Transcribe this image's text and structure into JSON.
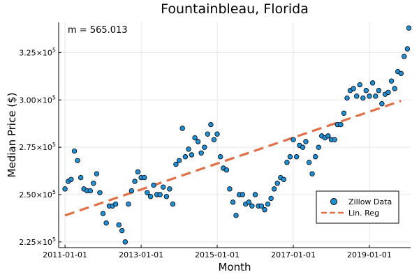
{
  "chart_data": {
    "type": "scatter",
    "title": "Fountainbleau, Florida",
    "xlabel": "Month",
    "ylabel": "Median Price ($)",
    "annotation": "m = 565.013",
    "legend_position": "bottom-right",
    "grid": true,
    "xlim": [
      "2010-11-01",
      "2020-02-01"
    ],
    "ylim": [
      222000,
      341000
    ],
    "x_ticks": [
      "2011-01-01",
      "2013-01-01",
      "2015-01-01",
      "2017-01-01",
      "2019-01-01"
    ],
    "y_ticks": [
      {
        "value": 225000,
        "mantissa": "2.25",
        "exp": "5"
      },
      {
        "value": 250000,
        "mantissa": "2.50",
        "exp": "5"
      },
      {
        "value": 275000,
        "mantissa": "2.75",
        "exp": "5"
      },
      {
        "value": 300000,
        "mantissa": "3.00",
        "exp": "5"
      },
      {
        "value": 325000,
        "mantissa": "3.25",
        "exp": "5"
      }
    ],
    "y_tick_base": "×10",
    "series": [
      {
        "name": "Zillow Data",
        "type": "scatter",
        "color": "#1f8fd6",
        "points": [
          [
            "2011-01-01",
            253000
          ],
          [
            "2011-02-01",
            257000
          ],
          [
            "2011-03-01",
            258000
          ],
          [
            "2011-04-01",
            273000
          ],
          [
            "2011-05-01",
            268000
          ],
          [
            "2011-06-01",
            259000
          ],
          [
            "2011-07-01",
            253000
          ],
          [
            "2011-08-01",
            252000
          ],
          [
            "2011-09-01",
            252000
          ],
          [
            "2011-10-01",
            256000
          ],
          [
            "2011-11-01",
            261000
          ],
          [
            "2011-12-01",
            251000
          ],
          [
            "2012-01-01",
            240000
          ],
          [
            "2012-02-01",
            235000
          ],
          [
            "2012-03-01",
            244000
          ],
          [
            "2012-04-01",
            244000
          ],
          [
            "2012-05-01",
            245000
          ],
          [
            "2012-06-01",
            234000
          ],
          [
            "2012-07-01",
            231000
          ],
          [
            "2012-08-01",
            225000
          ],
          [
            "2012-09-01",
            245000
          ],
          [
            "2012-10-01",
            252000
          ],
          [
            "2012-11-01",
            257000
          ],
          [
            "2012-12-01",
            262000
          ],
          [
            "2013-01-01",
            259000
          ],
          [
            "2013-02-01",
            259000
          ],
          [
            "2013-03-01",
            251000
          ],
          [
            "2013-04-01",
            249000
          ],
          [
            "2013-05-01",
            255000
          ],
          [
            "2013-06-01",
            250000
          ],
          [
            "2013-07-01",
            250000
          ],
          [
            "2013-08-01",
            254000
          ],
          [
            "2013-09-01",
            249000
          ],
          [
            "2013-10-01",
            253000
          ],
          [
            "2013-11-01",
            245000
          ],
          [
            "2013-12-01",
            266000
          ],
          [
            "2014-01-01",
            268000
          ],
          [
            "2014-02-01",
            285000
          ],
          [
            "2014-03-01",
            270000
          ],
          [
            "2014-04-01",
            274000
          ],
          [
            "2014-05-01",
            271000
          ],
          [
            "2014-06-01",
            280000
          ],
          [
            "2014-07-01",
            278000
          ],
          [
            "2014-08-01",
            272000
          ],
          [
            "2014-09-01",
            275000
          ],
          [
            "2014-10-01",
            282000
          ],
          [
            "2014-11-01",
            287000
          ],
          [
            "2014-12-01",
            279000
          ],
          [
            "2015-01-01",
            282000
          ],
          [
            "2015-02-01",
            270000
          ],
          [
            "2015-03-01",
            264000
          ],
          [
            "2015-04-01",
            263000
          ],
          [
            "2015-05-01",
            253000
          ],
          [
            "2015-06-01",
            246000
          ],
          [
            "2015-07-01",
            239000
          ],
          [
            "2015-08-01",
            250000
          ],
          [
            "2015-09-01",
            250000
          ],
          [
            "2015-10-01",
            245000
          ],
          [
            "2015-11-01",
            246000
          ],
          [
            "2015-12-01",
            244000
          ],
          [
            "2016-01-01",
            250000
          ],
          [
            "2016-02-01",
            244000
          ],
          [
            "2016-03-01",
            244000
          ],
          [
            "2016-04-01",
            242000
          ],
          [
            "2016-05-01",
            245000
          ],
          [
            "2016-06-01",
            248000
          ],
          [
            "2016-07-01",
            253000
          ],
          [
            "2016-08-01",
            256000
          ],
          [
            "2016-09-01",
            259000
          ],
          [
            "2016-10-01",
            258000
          ],
          [
            "2016-11-01",
            267000
          ],
          [
            "2016-12-01",
            270000
          ],
          [
            "2017-01-01",
            279000
          ],
          [
            "2017-02-01",
            270000
          ],
          [
            "2017-03-01",
            276000
          ],
          [
            "2017-04-01",
            275000
          ],
          [
            "2017-05-01",
            278000
          ],
          [
            "2017-06-01",
            267000
          ],
          [
            "2017-07-01",
            261000
          ],
          [
            "2017-08-01",
            270000
          ],
          [
            "2017-09-01",
            275000
          ],
          [
            "2017-10-01",
            281000
          ],
          [
            "2017-11-01",
            280000
          ],
          [
            "2017-12-01",
            281000
          ],
          [
            "2018-01-01",
            279000
          ],
          [
            "2018-02-01",
            279000
          ],
          [
            "2018-03-01",
            287000
          ],
          [
            "2018-04-01",
            287000
          ],
          [
            "2018-05-01",
            293000
          ],
          [
            "2018-06-01",
            301000
          ],
          [
            "2018-07-01",
            305000
          ],
          [
            "2018-08-01",
            306000
          ],
          [
            "2018-09-01",
            302000
          ],
          [
            "2018-10-01",
            308000
          ],
          [
            "2018-11-01",
            301000
          ],
          [
            "2018-12-01",
            305000
          ],
          [
            "2019-01-01",
            302000
          ],
          [
            "2019-02-01",
            309000
          ],
          [
            "2019-03-01",
            302000
          ],
          [
            "2019-04-01",
            305000
          ],
          [
            "2019-05-01",
            298000
          ],
          [
            "2019-06-01",
            303000
          ],
          [
            "2019-07-01",
            304000
          ],
          [
            "2019-08-01",
            310000
          ],
          [
            "2019-09-01",
            306000
          ],
          [
            "2019-10-01",
            315000
          ],
          [
            "2019-11-01",
            314000
          ],
          [
            "2019-12-01",
            323000
          ],
          [
            "2020-01-01",
            327000
          ],
          [
            "2020-01-15",
            338000
          ]
        ]
      },
      {
        "name": "Lin. Reg",
        "type": "line",
        "style": "dashed",
        "color": "#e26f46",
        "points": [
          [
            "2011-01-01",
            239000
          ],
          [
            "2019-11-01",
            299500
          ]
        ]
      }
    ]
  }
}
